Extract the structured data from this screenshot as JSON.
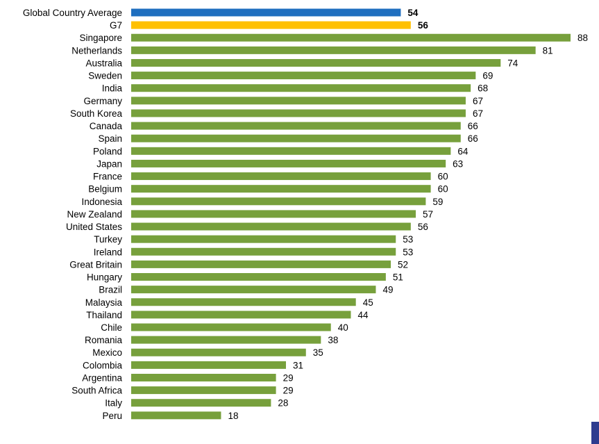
{
  "colors": {
    "highlight_global": "#1f6fbf",
    "highlight_g7": "#ffc000",
    "country_bar": "#77a03c",
    "corner_mark": "#2e3b8f"
  },
  "chart_data": {
    "type": "bar",
    "orientation": "horizontal",
    "title": "",
    "xlabel": "",
    "ylabel": "",
    "xlim": [
      0,
      88
    ],
    "grid": false,
    "legend": "none",
    "categories": [
      "Global Country Average",
      "G7",
      "Singapore",
      "Netherlands",
      "Australia",
      "Sweden",
      "India",
      "Germany",
      "South Korea",
      "Canada",
      "Spain",
      "Poland",
      "Japan",
      "France",
      "Belgium",
      "Indonesia",
      "New Zealand",
      "United States",
      "Turkey",
      "Ireland",
      "Great Britain",
      "Hungary",
      "Brazil",
      "Malaysia",
      "Thailand",
      "Chile",
      "Romania",
      "Mexico",
      "Colombia",
      "Argentina",
      "South Africa",
      "Italy",
      "Peru"
    ],
    "values": [
      54,
      56,
      88,
      81,
      74,
      69,
      68,
      67,
      67,
      66,
      66,
      64,
      63,
      60,
      60,
      59,
      57,
      56,
      53,
      53,
      52,
      51,
      49,
      45,
      44,
      40,
      38,
      35,
      31,
      29,
      29,
      28,
      18
    ],
    "highlighted": {
      "Global Country Average": "highlight_global",
      "G7": "highlight_g7"
    },
    "bold_value_labels": [
      "Global Country Average",
      "G7"
    ]
  }
}
